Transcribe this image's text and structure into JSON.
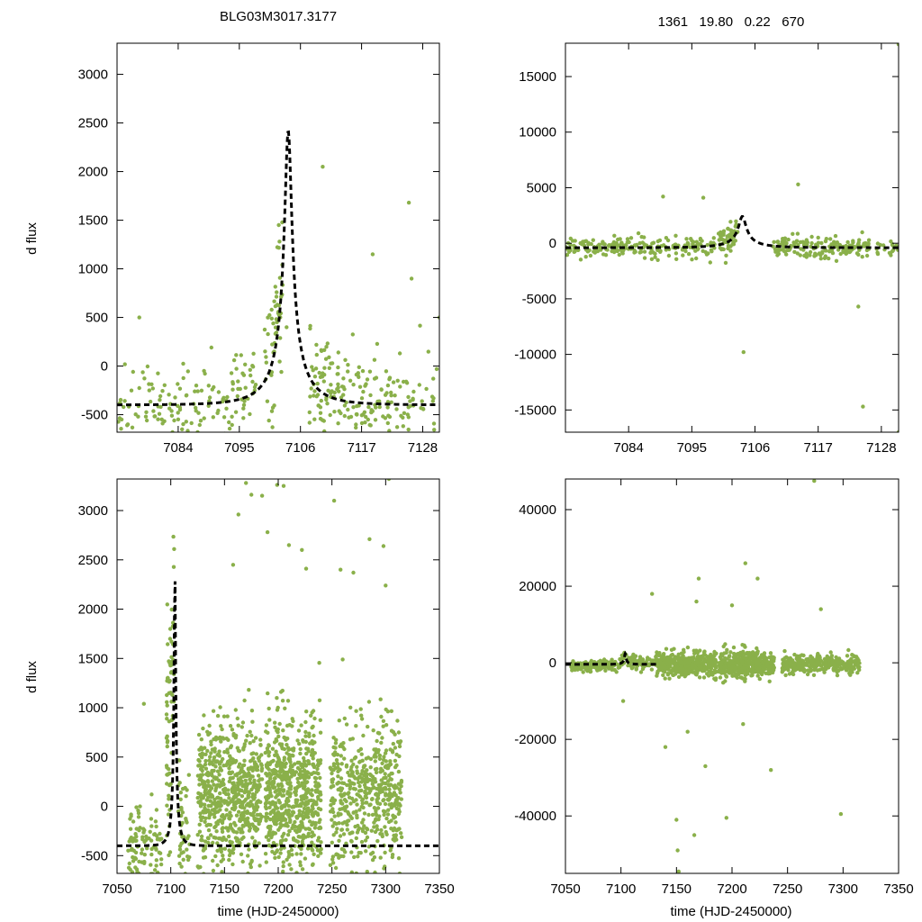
{
  "header": {
    "left_title": "BLG03M3017.3177",
    "right_title": "1361   19.80   0.22   670"
  },
  "colors": {
    "points": "#8ab04a",
    "fit": "#000000",
    "frame": "#000000"
  },
  "chart_data": [
    {
      "id": "top-left",
      "type": "scatter",
      "title": "BLG03M3017.3177",
      "ylabel": "d flux",
      "xlabel": "",
      "xlim": [
        7073,
        7131
      ],
      "ylim": [
        -680,
        3320
      ],
      "xticks": [
        7084,
        7095,
        7106,
        7117,
        7128
      ],
      "yticks": [
        -500,
        0,
        500,
        1000,
        1500,
        2000,
        2500,
        3000
      ],
      "fit": {
        "t0": 7103.8,
        "u0": 0.0936,
        "tE": 6.95,
        "fs": 290,
        "fb": -690
      },
      "scatter_seed": 11,
      "segments": [
        {
          "x": [
            7073,
            7093.5
          ],
          "n": 110,
          "noise": 210,
          "yoff": 0
        },
        {
          "x": [
            7093.5,
            7098.0
          ],
          "n": 40,
          "noise": 260,
          "yoff": 80
        },
        {
          "x": [
            7099.5,
            7102.8
          ],
          "n": 55,
          "noise": 420,
          "yoff": 300
        },
        {
          "x": [
            7107.5,
            7113.0
          ],
          "n": 70,
          "noise": 260,
          "yoff": 120
        },
        {
          "x": [
            7113.0,
            7126.0
          ],
          "n": 110,
          "noise": 230,
          "yoff": 40
        },
        {
          "x": [
            7126.0,
            7131.0
          ],
          "n": 22,
          "noise": 280,
          "yoff": 80
        }
      ],
      "outliers": [
        [
          7077,
          500
        ],
        [
          7110,
          2050
        ],
        [
          7125.5,
          1680
        ],
        [
          7126,
          900
        ],
        [
          7119,
          1150
        ],
        [
          7103.5,
          400
        ],
        [
          7131,
          500
        ]
      ]
    },
    {
      "id": "top-right",
      "type": "scatter",
      "title": "1361   19.80   0.22   670",
      "ylabel": "",
      "xlabel": "",
      "xlim": [
        7073,
        7131
      ],
      "ylim": [
        -17000,
        18000
      ],
      "xticks": [
        7084,
        7095,
        7106,
        7117,
        7128
      ],
      "yticks": [
        -15000,
        -10000,
        -5000,
        0,
        5000,
        10000,
        15000
      ],
      "fit": {
        "t0": 7103.8,
        "u0": 0.0936,
        "tE": 6.95,
        "fs": 290,
        "fb": -690
      },
      "scatter_seed": 23,
      "segments": [
        {
          "x": [
            7073,
            7094.0
          ],
          "n": 160,
          "noise": 420,
          "yoff": 0
        },
        {
          "x": [
            7094.0,
            7099.0
          ],
          "n": 45,
          "noise": 500,
          "yoff": 0
        },
        {
          "x": [
            7099.5,
            7103.0
          ],
          "n": 70,
          "noise": 700,
          "yoff": 300
        },
        {
          "x": [
            7109.0,
            7126.0
          ],
          "n": 170,
          "noise": 500,
          "yoff": 0
        },
        {
          "x": [
            7126.5,
            7131.0
          ],
          "n": 20,
          "noise": 450,
          "yoff": 0
        }
      ],
      "outliers": [
        [
          7090,
          4200
        ],
        [
          7113.5,
          5300
        ],
        [
          7104,
          -9800
        ],
        [
          7124,
          -5700
        ],
        [
          7124.8,
          -14700
        ],
        [
          7131,
          17900
        ],
        [
          7131,
          -17000
        ],
        [
          7097,
          4100
        ]
      ]
    },
    {
      "id": "bottom-left",
      "type": "scatter",
      "title": "",
      "ylabel": "d flux",
      "xlabel": "time (HJD-2450000)",
      "xlim": [
        7050,
        7350
      ],
      "ylim": [
        -680,
        3320
      ],
      "xticks": [
        7050,
        7100,
        7150,
        7200,
        7250,
        7300,
        7350
      ],
      "yticks": [
        -500,
        0,
        500,
        1000,
        1500,
        2000,
        2500,
        3000
      ],
      "fit": {
        "t0": 7103.8,
        "u0": 0.0936,
        "tE": 6.95,
        "fs": 290,
        "fb": -690
      },
      "scatter_seed": 37,
      "segments": [
        {
          "x": [
            7060,
            7092
          ],
          "n": 110,
          "noise": 240,
          "yoff": -80
        },
        {
          "x": [
            7096,
            7103.5
          ],
          "n": 70,
          "noise": 500,
          "yoff": 1500
        },
        {
          "x": [
            7107,
            7118
          ],
          "n": 45,
          "noise": 350,
          "yoff": 150
        },
        {
          "x": [
            7125,
            7185
          ],
          "n": 650,
          "noise": 380,
          "yoff": 150
        },
        {
          "x": [
            7188,
            7240
          ],
          "n": 650,
          "noise": 400,
          "yoff": 150
        },
        {
          "x": [
            7248,
            7315
          ],
          "n": 520,
          "noise": 360,
          "yoff": 250
        }
      ],
      "outliers": [
        [
          7075,
          1040
        ],
        [
          7170,
          3280
        ],
        [
          7175,
          3160
        ],
        [
          7185,
          3150
        ],
        [
          7199,
          3260
        ],
        [
          7205,
          3250
        ],
        [
          7210,
          2650
        ],
        [
          7222,
          2600
        ],
        [
          7226,
          2410
        ],
        [
          7258,
          2400
        ],
        [
          7270,
          2370
        ],
        [
          7285,
          2710
        ],
        [
          7298,
          2640
        ],
        [
          7300,
          2240
        ],
        [
          7303,
          3320
        ],
        [
          7190,
          2780
        ],
        [
          7163,
          2960
        ],
        [
          7158,
          2450
        ],
        [
          7252,
          3100
        ]
      ]
    },
    {
      "id": "bottom-right",
      "type": "scatter",
      "title": "",
      "ylabel": "",
      "xlabel": "time (HJD-2450000)",
      "xlim": [
        7050,
        7350
      ],
      "ylim": [
        -55000,
        48000
      ],
      "xticks": [
        7050,
        7100,
        7150,
        7200,
        7250,
        7300,
        7350
      ],
      "yticks": [
        -40000,
        -20000,
        0,
        20000,
        40000
      ],
      "fit": {
        "t0": 7103.8,
        "u0": 0.0936,
        "tE": 6.95,
        "fs": 290,
        "fb": -690
      },
      "fit_xmax": 7132,
      "scatter_seed": 51,
      "segments": [
        {
          "x": [
            7055,
            7092
          ],
          "n": 150,
          "noise": 700,
          "yoff": -600
        },
        {
          "x": [
            7093,
            7132
          ],
          "n": 110,
          "noise": 900,
          "yoff": 200
        },
        {
          "x": [
            7132,
            7186
          ],
          "n": 420,
          "noise": 1600,
          "yoff": 0
        },
        {
          "x": [
            7188,
            7238
          ],
          "n": 420,
          "noise": 1700,
          "yoff": 0
        },
        {
          "x": [
            7245,
            7315
          ],
          "n": 330,
          "noise": 1200,
          "yoff": 0
        }
      ],
      "outliers": [
        [
          7150,
          -41000
        ],
        [
          7151,
          -49000
        ],
        [
          7152,
          -54500
        ],
        [
          7166,
          -45000
        ],
        [
          7170,
          22000
        ],
        [
          7212,
          26000
        ],
        [
          7223,
          22000
        ],
        [
          7274,
          47500
        ],
        [
          7298,
          -39500
        ],
        [
          7195,
          -40500
        ],
        [
          7235,
          -28000
        ],
        [
          7128,
          18000
        ],
        [
          7102,
          -10000
        ],
        [
          7140,
          -22000
        ],
        [
          7160,
          -18000
        ],
        [
          7176,
          -27000
        ],
        [
          7200,
          15000
        ],
        [
          7210,
          -16000
        ],
        [
          7280,
          14000
        ],
        [
          7168,
          16000
        ]
      ]
    }
  ]
}
